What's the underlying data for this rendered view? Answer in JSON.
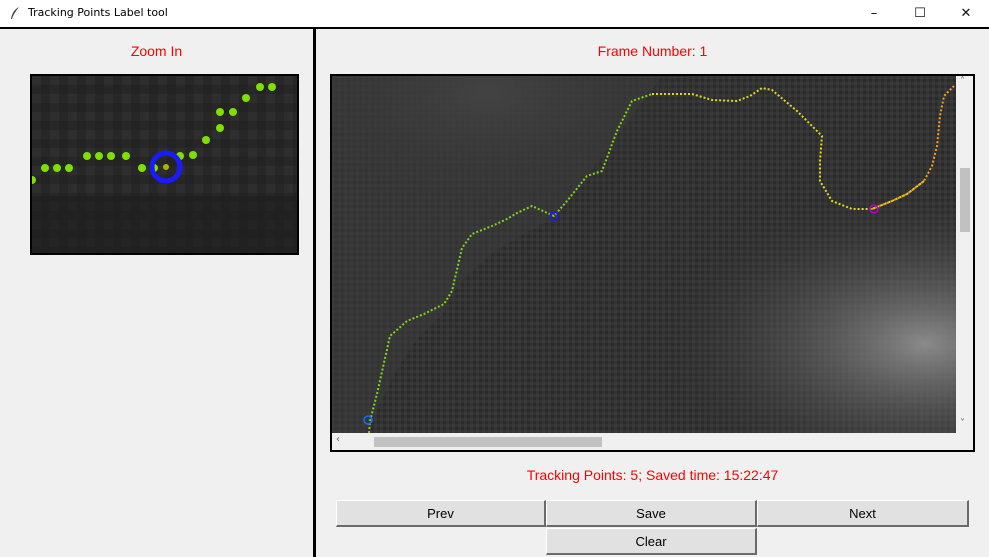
{
  "window": {
    "title": "Tracking Points Label tool",
    "minimize_glyph": "–",
    "maximize_glyph": "☐",
    "close_glyph": "✕"
  },
  "left_panel": {
    "title": "Zoom In"
  },
  "viewer": {
    "frame_label": "Frame Number: 1",
    "scroll_left_glyph": "‹",
    "scroll_right_glyph": "›",
    "scroll_up_glyph": "˄",
    "scroll_down_glyph": "˅"
  },
  "status": {
    "text": "Tracking Points: 5; Saved time: 15:22:47"
  },
  "buttons": {
    "prev": "Prev",
    "save": "Save",
    "next": "Next",
    "clear": "Clear"
  },
  "colors": {
    "label_red": "#ff0000",
    "contour_green": "#7fd31a",
    "contour_yellow": "#e0d81a",
    "contour_orange": "#f0a020",
    "marker_blue": "#1a1aff",
    "marker_magenta": "#c000c0"
  }
}
